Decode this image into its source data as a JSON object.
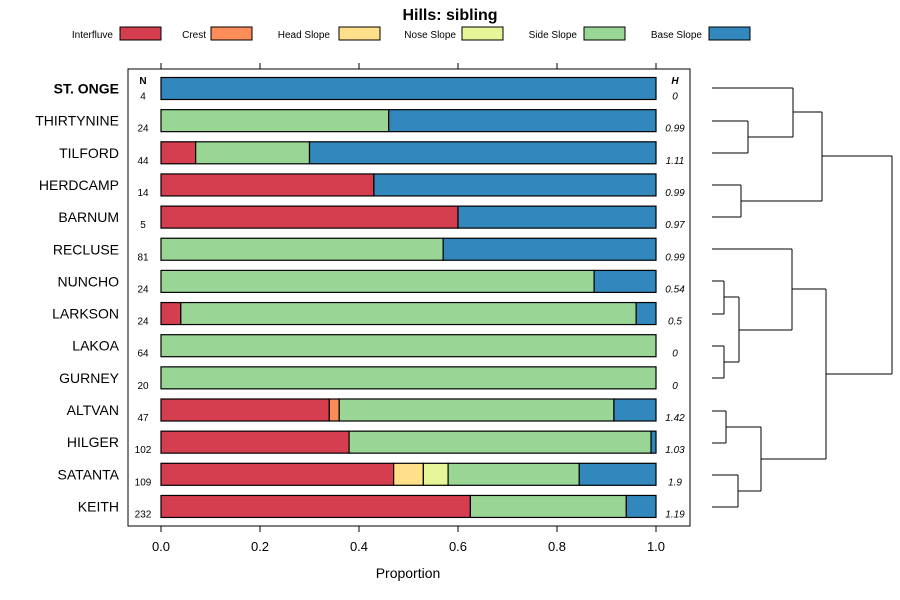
{
  "chart_data": {
    "type": "bar",
    "orientation": "horizontal-stacked",
    "title": "Hills: sibling",
    "xlabel": "Proportion",
    "xlim": [
      0,
      1
    ],
    "xticks": [
      "0.0",
      "0.2",
      "0.4",
      "0.6",
      "0.8",
      "1.0"
    ],
    "xtick_values": [
      0,
      0.2,
      0.4,
      0.6,
      0.8,
      1.0
    ],
    "n_header": "N",
    "h_header": "H",
    "legend_position": "top",
    "legend": [
      {
        "name": "Interfluve",
        "color": "#D53E4F"
      },
      {
        "name": "Crest",
        "color": "#FC8D59"
      },
      {
        "name": "Head Slope",
        "color": "#FEE08B"
      },
      {
        "name": "Nose Slope",
        "color": "#E6F598"
      },
      {
        "name": "Side Slope",
        "color": "#99D594"
      },
      {
        "name": "Base Slope",
        "color": "#3288BD"
      }
    ],
    "series_order": [
      "Interfluve",
      "Crest",
      "Head Slope",
      "Nose Slope",
      "Side Slope",
      "Base Slope"
    ],
    "rows": [
      {
        "label": "ST. ONGE",
        "bold": true,
        "n": "4",
        "h": "0",
        "values": [
          0,
          0,
          0,
          0,
          0,
          1.0
        ]
      },
      {
        "label": "THIRTYNINE",
        "bold": false,
        "n": "24",
        "h": "0.99",
        "values": [
          0,
          0,
          0,
          0,
          0.46,
          0.54
        ]
      },
      {
        "label": "TILFORD",
        "bold": false,
        "n": "44",
        "h": "1.11",
        "values": [
          0.07,
          0,
          0,
          0,
          0.23,
          0.7
        ]
      },
      {
        "label": "HERDCAMP",
        "bold": false,
        "n": "14",
        "h": "0.99",
        "values": [
          0.43,
          0,
          0,
          0,
          0,
          0.57
        ]
      },
      {
        "label": "BARNUM",
        "bold": false,
        "n": "5",
        "h": "0.97",
        "values": [
          0.6,
          0,
          0,
          0,
          0,
          0.4
        ]
      },
      {
        "label": "RECLUSE",
        "bold": false,
        "n": "81",
        "h": "0.99",
        "values": [
          0,
          0,
          0,
          0,
          0.57,
          0.43
        ]
      },
      {
        "label": "NUNCHO",
        "bold": false,
        "n": "24",
        "h": "0.54",
        "values": [
          0,
          0,
          0,
          0,
          0.875,
          0.125
        ]
      },
      {
        "label": "LARKSON",
        "bold": false,
        "n": "24",
        "h": "0.5",
        "values": [
          0.04,
          0,
          0,
          0,
          0.92,
          0.04
        ]
      },
      {
        "label": "LAKOA",
        "bold": false,
        "n": "64",
        "h": "0",
        "values": [
          0,
          0,
          0,
          0,
          1.0,
          0
        ]
      },
      {
        "label": "GURNEY",
        "bold": false,
        "n": "20",
        "h": "0",
        "values": [
          0,
          0,
          0,
          0,
          1.0,
          0
        ]
      },
      {
        "label": "ALTVAN",
        "bold": false,
        "n": "47",
        "h": "1.42",
        "values": [
          0.34,
          0.02,
          0,
          0,
          0.555,
          0.085
        ]
      },
      {
        "label": "HILGER",
        "bold": false,
        "n": "102",
        "h": "1.03",
        "values": [
          0.38,
          0,
          0,
          0,
          0.61,
          0.01
        ]
      },
      {
        "label": "SATANTA",
        "bold": false,
        "n": "109",
        "h": "1.9",
        "values": [
          0.47,
          0,
          0.06,
          0.05,
          0.265,
          0.155
        ]
      },
      {
        "label": "KEITH",
        "bold": false,
        "n": "232",
        "h": "1.19",
        "values": [
          0.625,
          0,
          0,
          0,
          0.315,
          0.06
        ]
      }
    ]
  }
}
